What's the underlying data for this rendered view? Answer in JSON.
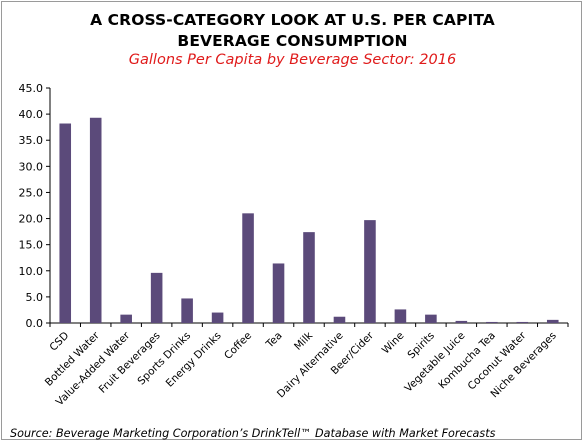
{
  "chart_data": {
    "type": "bar",
    "title_line1": "A CROSS-CATEGORY  LOOK AT U.S. PER CAPITA",
    "title_line2": "BEVERAGE CONSUMPTION",
    "subtitle": "Gallons Per Capita by Beverage Sector: 2016",
    "xlabel": "",
    "ylabel": "",
    "ylim": [
      0,
      45
    ],
    "yticks": [
      "0.0",
      "5.0",
      "10.0",
      "15.0",
      "20.0",
      "25.0",
      "30.0",
      "35.0",
      "40.0",
      "45.0"
    ],
    "categories": [
      "CSD",
      "Bottled Water",
      "Value-Added Water",
      "Fruit Beverages",
      "Sports Drinks",
      "Energy Drinks",
      "Coffee",
      "Tea",
      "Milk",
      "Dairy Alternative",
      "Beer/Cider",
      "Wine",
      "Spirits",
      "Vegetable Juice",
      "Kombucha Tea",
      "Coconut Water",
      "Niche Beverages"
    ],
    "values": [
      38.2,
      39.3,
      1.6,
      9.6,
      4.7,
      2.0,
      21.0,
      11.4,
      17.4,
      1.2,
      19.7,
      2.6,
      1.6,
      0.4,
      0.2,
      0.2,
      0.6
    ],
    "grid": false,
    "legend": "none",
    "bar_color": "#5b4a7a",
    "source": "Source: Beverage Marketing Corporation’s DrinkTell™ Database with Market Forecasts"
  }
}
